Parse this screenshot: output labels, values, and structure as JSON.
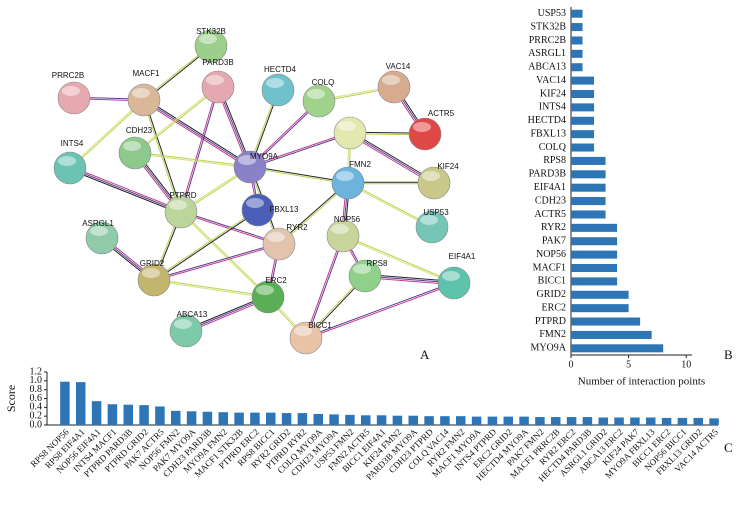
{
  "network": {
    "nodes": [
      "STK32B",
      "PRRC2B",
      "MACF1",
      "PARD3B",
      "HECTD4",
      "COLQ",
      "VAC14",
      "ACTR5",
      "CDH23",
      "INTS4",
      "MYO9A",
      "FMN2",
      "KIF24",
      "FBXL13",
      "PTPRD",
      "ASRGL1",
      "RYR2",
      "NOP56",
      "USP53",
      "GRID2",
      "ERC2",
      "RPS8",
      "EIF4A1",
      "ABCA13",
      "BICC1"
    ]
  },
  "panel_labels": [
    "A",
    "B",
    "C"
  ],
  "chart_data": [
    {
      "type": "barh",
      "categories": [
        "USP53",
        "STK32B",
        "PRRC2B",
        "ASRGL1",
        "ABCA13",
        "VAC14",
        "KIF24",
        "INTS4",
        "HECTD4",
        "FBXL13",
        "COLQ",
        "RPS8",
        "PARD3B",
        "EIF4A1",
        "CDH23",
        "ACTR5",
        "RYR2",
        "PAK7",
        "NOP56",
        "MACF1",
        "BICC1",
        "GRID2",
        "ERC2",
        "PTPRD",
        "FMN2",
        "MYO9A"
      ],
      "values": [
        1,
        1,
        1,
        1,
        1,
        2,
        2,
        2,
        2,
        2,
        2,
        3,
        3,
        3,
        3,
        3,
        4,
        4,
        4,
        4,
        4,
        5,
        5,
        6,
        7,
        8
      ],
      "color": "#2e75b6",
      "xlabel": "Number of interaction points",
      "xlim": [
        0,
        10.5
      ],
      "xticks": [
        0,
        5,
        10
      ]
    },
    {
      "type": "bar",
      "categories": [
        "RPS8 NOP56",
        "RPS8 EIF4A1",
        "NOP56 EIF4A1",
        "INTS4 MACF1",
        "PTPRD PARD3B",
        "PTPRD GRID2",
        "PAK7 ACTR5",
        "NOP56 FMN2",
        "PAK7 MYO9A",
        "CDH23 PARD3B",
        "MYO9A FMN2",
        "MACF1 STK32B",
        "PTPRD ERC2",
        "RPS8 BICC1",
        "RYR2 GRID2",
        "PTPRD RYR2",
        "COLQ MYO9A",
        "CDH23 MYO9A",
        "USP53 FMN2",
        "FMN2 ACTR5",
        "BICC1 EIF4A1",
        "KIF24 FMN2",
        "PARD3B MYO9A",
        "CDH23 PTPRD",
        "COLQ VAC14",
        "RYR2 FMN2",
        "MACF1 MYO9A",
        "INTS4 PTPRD",
        "ERC2 GRID2",
        "HECTD4 MYO9A",
        "PAK7 FMN2",
        "MACF1 PRRC2B",
        "RYR2 ERC2",
        "HECTD4 PARD3B",
        "ASRGL1 GRID2",
        "ABCA13 ERC2",
        "KIF24 PAK7",
        "MYO9A FBXL13",
        "BICC1 ERC2",
        "NOP56 BICC1",
        "FBXL13 GRID2",
        "VAC14 ACTR5"
      ],
      "values": [
        0.98,
        0.97,
        0.54,
        0.47,
        0.46,
        0.45,
        0.42,
        0.32,
        0.31,
        0.3,
        0.29,
        0.28,
        0.28,
        0.28,
        0.27,
        0.27,
        0.25,
        0.24,
        0.23,
        0.22,
        0.22,
        0.21,
        0.21,
        0.2,
        0.2,
        0.2,
        0.19,
        0.19,
        0.19,
        0.19,
        0.18,
        0.18,
        0.18,
        0.18,
        0.17,
        0.17,
        0.17,
        0.17,
        0.16,
        0.16,
        0.16,
        0.15
      ],
      "color": "#2e75b6",
      "ylabel": "Score",
      "ylim": [
        0,
        1.2
      ],
      "yticks": [
        {
          "value": 0,
          "label": "0.0"
        },
        0.2,
        0.4,
        0.6,
        0.8,
        {
          "value": 1,
          "label": "1.0"
        },
        1.2
      ]
    }
  ]
}
